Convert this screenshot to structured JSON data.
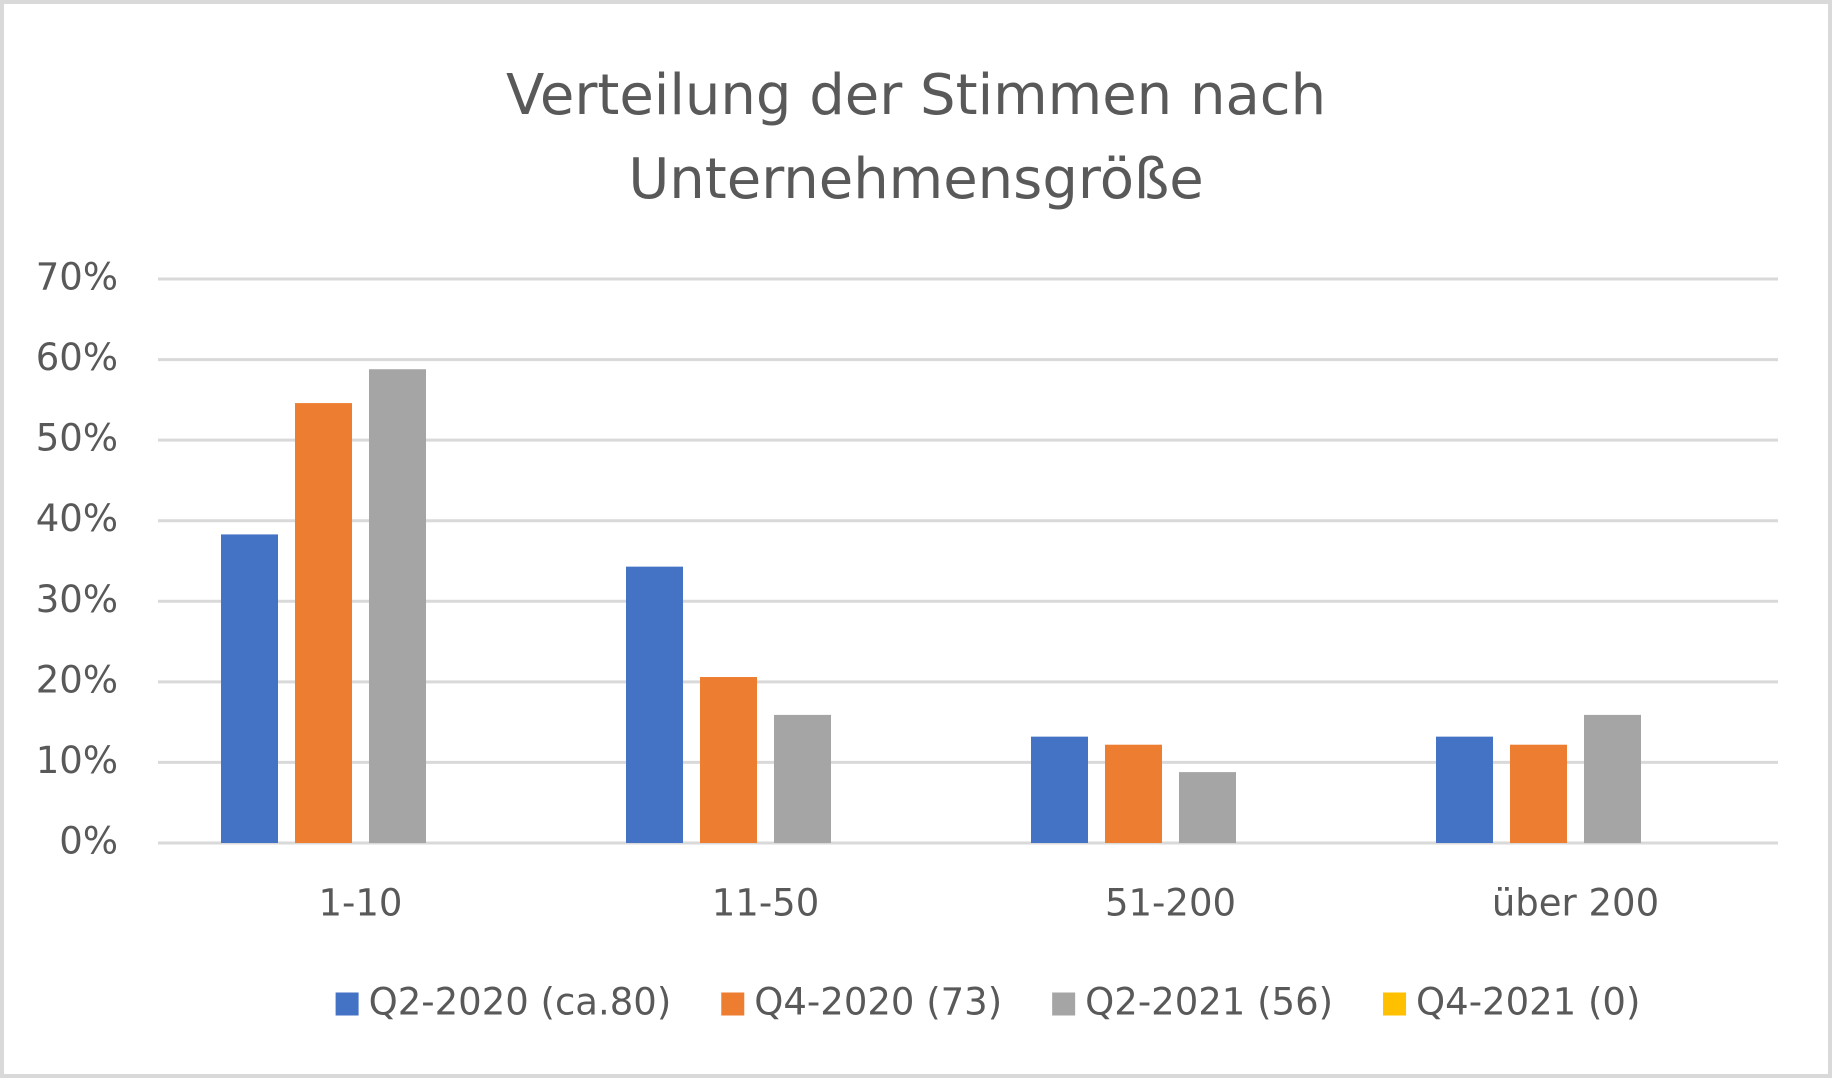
{
  "chart_data": {
    "type": "bar",
    "title": "Verteilung der Stimmen nach Unternehmensgröße",
    "categories": [
      "1-10",
      "11-50",
      "51-200",
      "über 200"
    ],
    "series": [
      {
        "name": "Q2-2020 (ca.80)",
        "color": "#4472c4",
        "values": [
          38.3,
          34.3,
          13.2,
          13.2
        ]
      },
      {
        "name": "Q4-2020 (73)",
        "color": "#ed7d31",
        "values": [
          54.6,
          20.6,
          12.2,
          12.2
        ]
      },
      {
        "name": "Q2-2021 (56)",
        "color": "#a5a5a5",
        "values": [
          58.8,
          15.9,
          8.8,
          15.9
        ]
      },
      {
        "name": "Q4-2021 (0)",
        "color": "#ffc000",
        "values": [
          0,
          0,
          0,
          0
        ]
      }
    ],
    "ylim": [
      0,
      70
    ],
    "yticks": [
      {
        "value": 0,
        "label": "0%"
      },
      {
        "value": 10,
        "label": "10%"
      },
      {
        "value": 20,
        "label": "20%"
      },
      {
        "value": 30,
        "label": "30%"
      },
      {
        "value": 40,
        "label": "40%"
      },
      {
        "value": 50,
        "label": "50%"
      },
      {
        "value": 60,
        "label": "60%"
      },
      {
        "value": 70,
        "label": "70%"
      }
    ],
    "grid": true,
    "legend": "bottom"
  }
}
